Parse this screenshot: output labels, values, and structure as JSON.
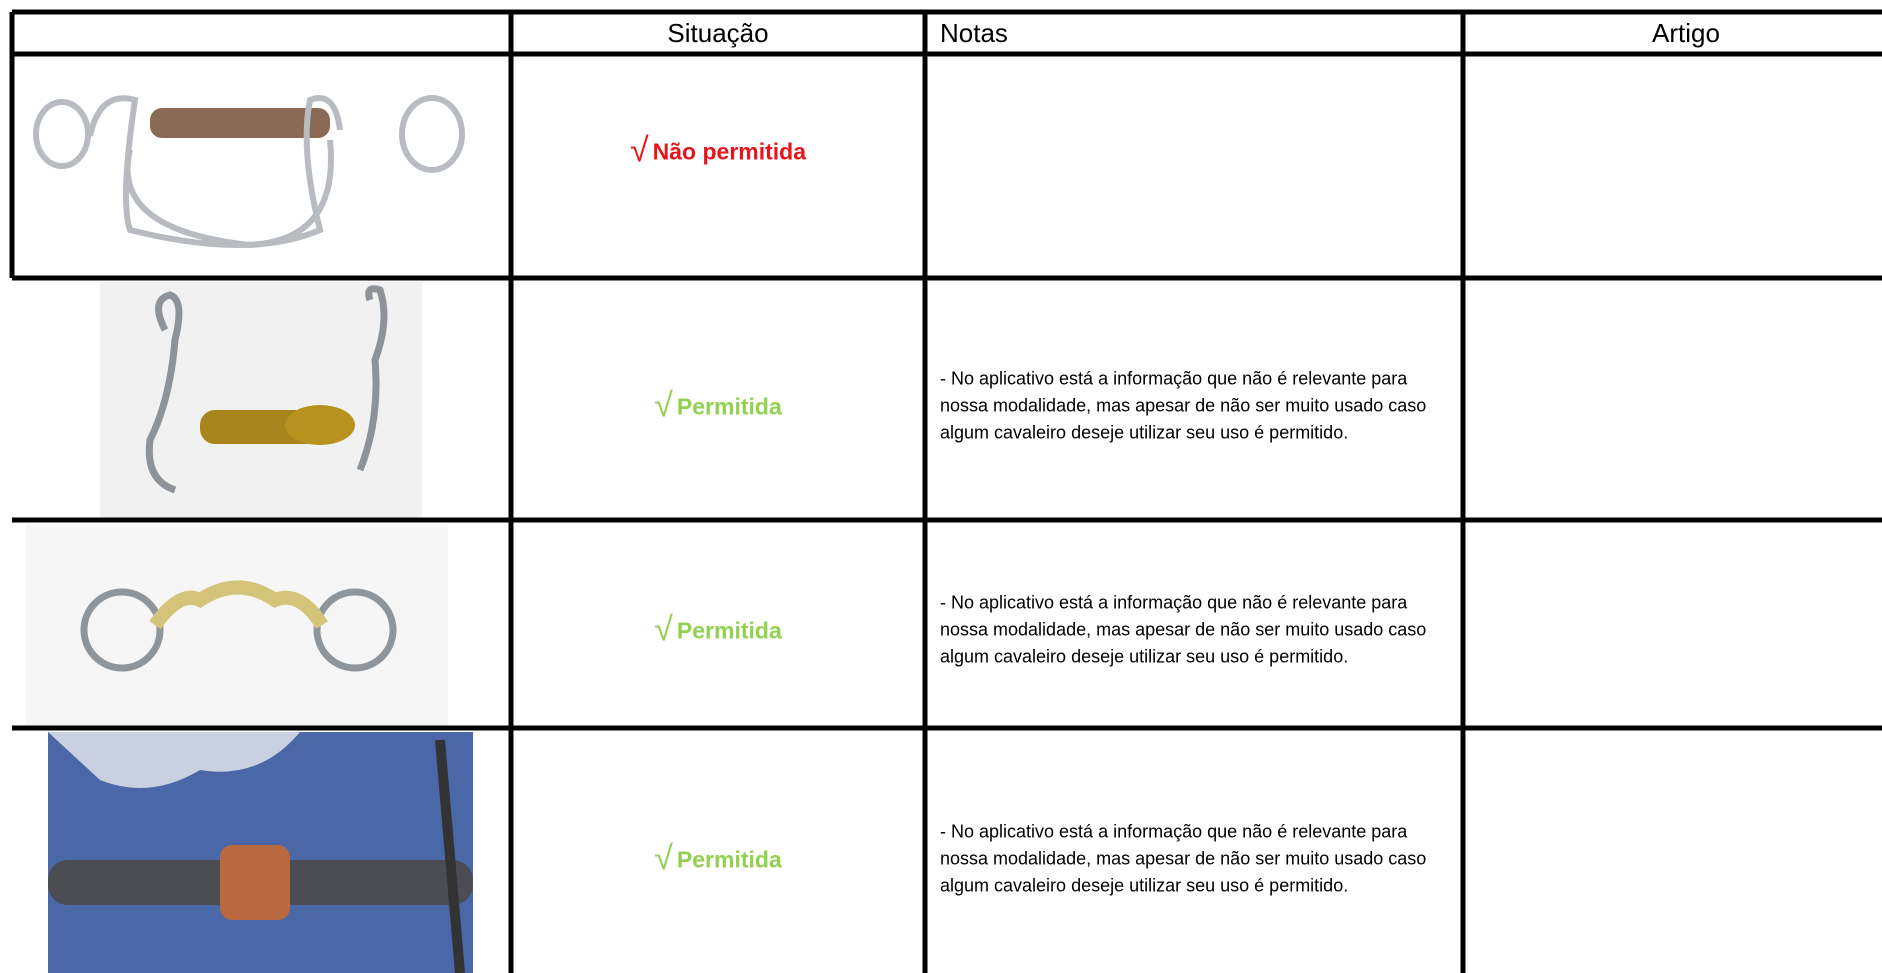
{
  "table": {
    "headers": [
      "Situação",
      "Notas",
      "Artigo"
    ],
    "rows": [
      {
        "mark": "√",
        "status": "Não permitida",
        "color": "#e8141b",
        "note": null
      },
      {
        "mark": "√",
        "status": "Permitida",
        "color": "#92d050",
        "note": "- No aplicativo está a informação que não é relevante para nossa modalidade, mas apesar de não ser muito usado caso algum cavaleiro deseje utilizar seu uso é permitido."
      },
      {
        "mark": "√",
        "status": "Permitida",
        "color": "#92d050",
        "note": "- No aplicativo está a informação que não é relevante para nossa modalidade, mas apesar de não ser muito usado caso algum cavaleiro deseje utilizar seu uso é permitido."
      },
      {
        "mark": "√",
        "status": "Permitida",
        "color": "#92d050",
        "note": "- No aplicativo está a informação que não é relevante para nossa modalidade, mas apesar de não ser muito usado caso algum cavaleiro deseje utilizar seu uso é permitido."
      }
    ]
  }
}
